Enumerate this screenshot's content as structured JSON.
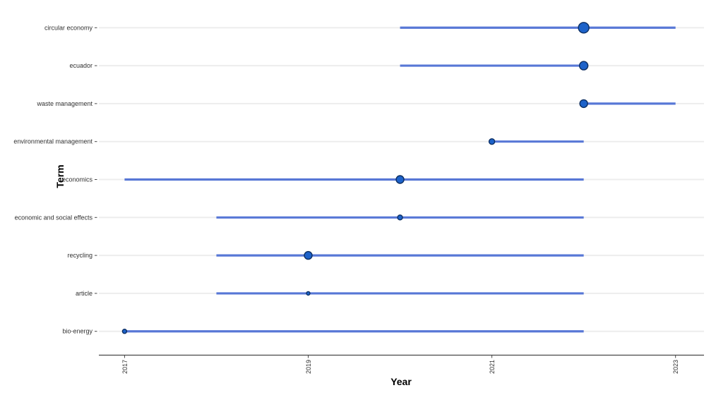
{
  "chart_data": {
    "type": "lollipop",
    "title": "",
    "xlabel": "Year",
    "ylabel": "Term",
    "xlim": [
      2016.72,
      2023.31
    ],
    "x_ticks": [
      "2017",
      "2019",
      "2021",
      "2023"
    ],
    "x_tick_years": [
      2017,
      2019,
      2021,
      2023
    ],
    "grid": "horizontal-major-only",
    "legend": "none",
    "series": [
      {
        "term": "circular economy",
        "line_start": 2020,
        "line_end": 2023,
        "point_year": 2022,
        "point_radius": 7.5
      },
      {
        "term": "ecuador",
        "line_start": 2020,
        "line_end": 2022,
        "point_year": 2022,
        "point_radius": 6
      },
      {
        "term": "waste management",
        "line_start": 2022,
        "line_end": 2023,
        "point_year": 2022,
        "point_radius": 5.5
      },
      {
        "term": "environmental management",
        "line_start": 2021,
        "line_end": 2022,
        "point_year": 2021,
        "point_radius": 4
      },
      {
        "term": "economics",
        "line_start": 2017,
        "line_end": 2022,
        "point_year": 2020,
        "point_radius": 5.5
      },
      {
        "term": "economic and social effects",
        "line_start": 2018,
        "line_end": 2022,
        "point_year": 2020,
        "point_radius": 3.5
      },
      {
        "term": "recycling",
        "line_start": 2018,
        "line_end": 2022,
        "point_year": 2019,
        "point_radius": 5.5
      },
      {
        "term": "article",
        "line_start": 2018,
        "line_end": 2022,
        "point_year": 2019,
        "point_radius": 2.5
      },
      {
        "term": "bio-energy",
        "line_start": 2017,
        "line_end": 2022,
        "point_year": 2017,
        "point_radius": 3
      }
    ],
    "colors": {
      "line": "#4a6cd4",
      "point_fill": "#1d62c9",
      "point_stroke": "#0d2f63",
      "grid": "#ededed",
      "axis": "#474747",
      "tick_text": "#303030",
      "title_text": "#000000",
      "background": "#ffffff"
    }
  }
}
